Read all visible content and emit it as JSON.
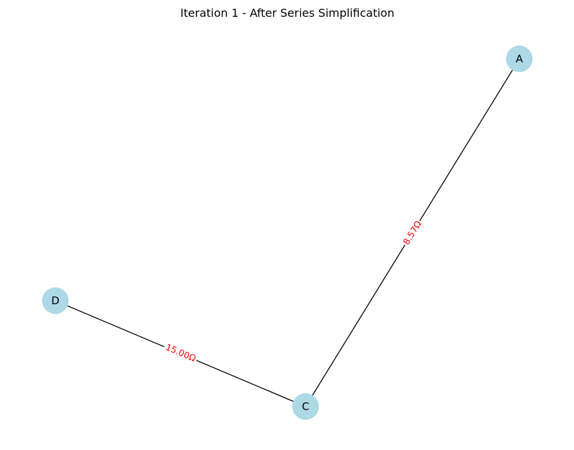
{
  "title": "Iteration 1 - After Series Simplification",
  "colors": {
    "node_fill": "#add8e6",
    "edge_stroke": "#000000",
    "edge_label": "#ff0000",
    "label_background": "#ffffff"
  },
  "nodes": [
    {
      "id": "A",
      "label": "A"
    },
    {
      "id": "C",
      "label": "C"
    },
    {
      "id": "D",
      "label": "D"
    }
  ],
  "edges": [
    {
      "from": "A",
      "to": "C",
      "label": "8.57Ω"
    },
    {
      "from": "D",
      "to": "C",
      "label": "15.00Ω"
    }
  ]
}
